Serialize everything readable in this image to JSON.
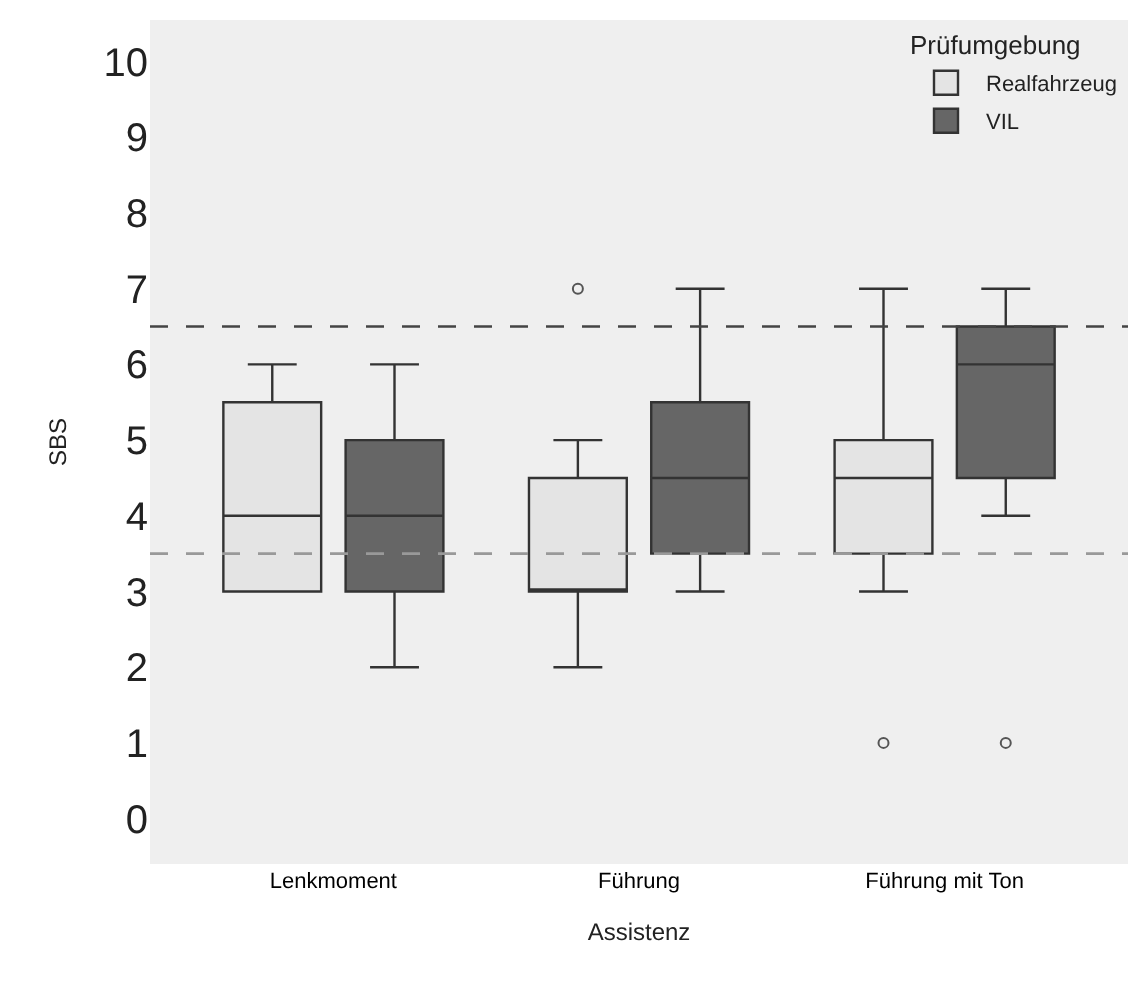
{
  "chart_data": {
    "type": "box",
    "xlabel": "Assistenz",
    "ylabel": "SBS",
    "legend_title": "Prüfumgebung",
    "legend": "top right",
    "grid": false,
    "categories": [
      "Lenkmoment",
      "Führung",
      "Führung mit Ton"
    ],
    "ylim": [
      -0.6,
      10.55
    ],
    "yticks": [
      0,
      1,
      2,
      3,
      4,
      5,
      6,
      7,
      8,
      9,
      10
    ],
    "series": [
      {
        "name": "Realfahrzeug",
        "color": "#e4e4e4",
        "boxes": [
          {
            "low": 3,
            "q1": 3,
            "median": 4,
            "q3": 5.5,
            "high": 6
          },
          {
            "low": 2,
            "q1": 3,
            "median": 3,
            "q3": 4.5,
            "high": 5,
            "outliers": [
              7
            ]
          },
          {
            "low": 3,
            "q1": 3.5,
            "median": 4.5,
            "q3": 5,
            "high": 7,
            "outliers": [
              1
            ]
          }
        ]
      },
      {
        "name": "VIL",
        "color": "#666666",
        "boxes": [
          {
            "low": 2,
            "q1": 3,
            "median": 4,
            "q3": 5,
            "high": 6
          },
          {
            "low": 3,
            "q1": 3.5,
            "median": 4.5,
            "q3": 5.5,
            "high": 7
          },
          {
            "low": 4,
            "q1": 4.5,
            "median": 6,
            "q3": 6.5,
            "high": 7,
            "outliers": [
              1
            ]
          }
        ]
      }
    ],
    "ref_lines": [
      {
        "axis": "y",
        "value": 6.5,
        "color": "#444444",
        "line_style": "dashed"
      },
      {
        "axis": "y",
        "value": 3.5,
        "color": "#999999",
        "line_style": "dashed"
      }
    ]
  }
}
